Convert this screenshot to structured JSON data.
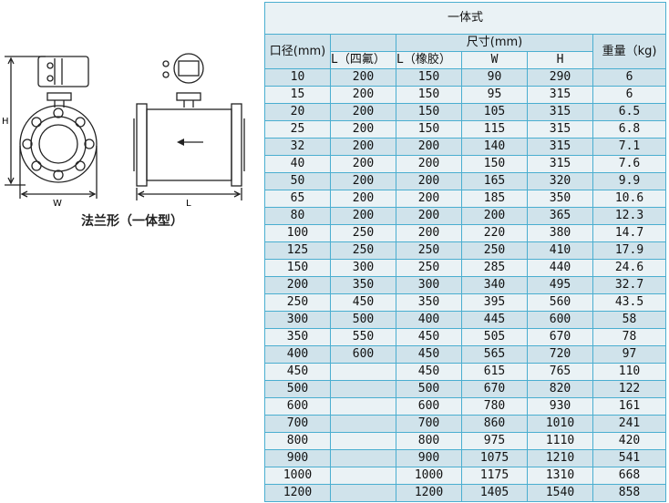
{
  "drawing": {
    "labels": {
      "h": "H",
      "w": "W",
      "l": "L"
    },
    "caption": "法兰形（一体型）"
  },
  "table": {
    "title": "一体式",
    "headers": {
      "diameter": "口径(mm)",
      "dimensions": "尺寸(mm)",
      "weight": "重量（kg)",
      "l_ptfe": "L（四氟）",
      "l_rubber": "L（橡胶）",
      "w": "W",
      "h": "H"
    },
    "rows": [
      [
        "10",
        "200",
        "150",
        "90",
        "290",
        "6"
      ],
      [
        "15",
        "200",
        "150",
        "95",
        "315",
        "6"
      ],
      [
        "20",
        "200",
        "150",
        "105",
        "315",
        "6.5"
      ],
      [
        "25",
        "200",
        "150",
        "115",
        "315",
        "6.8"
      ],
      [
        "32",
        "200",
        "200",
        "140",
        "315",
        "7.1"
      ],
      [
        "40",
        "200",
        "200",
        "150",
        "315",
        "7.6"
      ],
      [
        "50",
        "200",
        "200",
        "165",
        "320",
        "9.9"
      ],
      [
        "65",
        "200",
        "200",
        "185",
        "350",
        "10.6"
      ],
      [
        "80",
        "200",
        "200",
        "200",
        "365",
        "12.3"
      ],
      [
        "100",
        "250",
        "200",
        "220",
        "380",
        "14.7"
      ],
      [
        "125",
        "250",
        "250",
        "250",
        "410",
        "17.9"
      ],
      [
        "150",
        "300",
        "250",
        "285",
        "440",
        "24.6"
      ],
      [
        "200",
        "350",
        "300",
        "340",
        "495",
        "32.7"
      ],
      [
        "250",
        "450",
        "350",
        "395",
        "560",
        "43.5"
      ],
      [
        "300",
        "500",
        "400",
        "445",
        "600",
        "58"
      ],
      [
        "350",
        "550",
        "450",
        "505",
        "670",
        "78"
      ],
      [
        "400",
        "600",
        "450",
        "565",
        "720",
        "97"
      ],
      [
        "450",
        "",
        "450",
        "615",
        "765",
        "110"
      ],
      [
        "500",
        "",
        "500",
        "670",
        "820",
        "122"
      ],
      [
        "600",
        "",
        "600",
        "780",
        "930",
        "161"
      ],
      [
        "700",
        "",
        "700",
        "860",
        "1010",
        "241"
      ],
      [
        "800",
        "",
        "800",
        "975",
        "1110",
        "420"
      ],
      [
        "900",
        "",
        "900",
        "1075",
        "1210",
        "541"
      ],
      [
        "1000",
        "",
        "1000",
        "1175",
        "1310",
        "668"
      ],
      [
        "1200",
        "",
        "1200",
        "1405",
        "1540",
        "858"
      ]
    ]
  }
}
